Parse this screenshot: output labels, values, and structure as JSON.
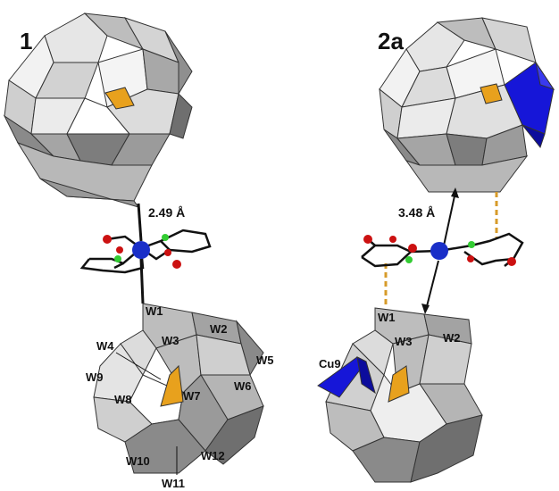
{
  "panels": [
    {
      "label": "1",
      "distance": "2.49 Å",
      "atoms": [
        "W1",
        "W2",
        "W3",
        "W4",
        "W5",
        "W6",
        "W7",
        "W8",
        "W9",
        "W10",
        "W11",
        "W12"
      ]
    },
    {
      "label": "2a",
      "distance": "3.48 Å",
      "atoms": [
        "W1",
        "W2",
        "W3",
        "Cu9"
      ]
    }
  ],
  "colors": {
    "polyhedron_light": "#e9e9e9",
    "polyhedron_mid": "#bdbdbd",
    "polyhedron_dark": "#7a7a7a",
    "copper_blue": "#1616d8",
    "central_tetrahedron": "#e8a11d",
    "metal_center": "#1a2fc8",
    "oxygen": "#cc1111",
    "nitrogen": "#33cc33",
    "bond": "#111111",
    "contact_dash": "#d79b2a"
  }
}
